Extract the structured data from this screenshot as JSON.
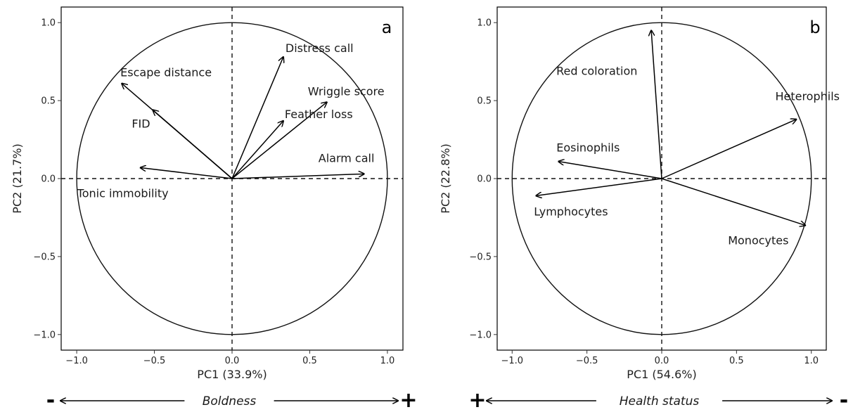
{
  "chart_data": [
    {
      "type": "scatter",
      "panel": "a",
      "xlabel": "PC1 (33.9%)",
      "ylabel": "PC2 (21.7%)",
      "xlim": [
        -1.1,
        1.1
      ],
      "ylim": [
        -1.1,
        1.1
      ],
      "xticks": [
        "−1.0",
        "−0.5",
        "0.0",
        "0.5",
        "1.0"
      ],
      "yticks": [
        "−1.0",
        "−0.5",
        "0.0",
        "0.5",
        "1.0"
      ],
      "vectors": [
        {
          "name": "Distress call",
          "x": 0.33,
          "y": 0.78
        },
        {
          "name": "Escape distance",
          "x": -0.71,
          "y": 0.61
        },
        {
          "name": "FID",
          "x": -0.51,
          "y": 0.44
        },
        {
          "name": "Wriggle score",
          "x": 0.61,
          "y": 0.49
        },
        {
          "name": "Feather loss",
          "x": 0.33,
          "y": 0.37
        },
        {
          "name": "Alarm call",
          "x": 0.85,
          "y": 0.03
        },
        {
          "name": "Tonic immobility",
          "x": -0.59,
          "y": 0.07
        }
      ],
      "bottom_axis": {
        "left_sign": "-",
        "label": "Boldness",
        "right_sign": "+"
      }
    },
    {
      "type": "scatter",
      "panel": "b",
      "xlabel": "PC1 (54.6%)",
      "ylabel": "PC2 (22.8%)",
      "xlim": [
        -1.1,
        1.1
      ],
      "ylim": [
        -1.1,
        1.1
      ],
      "xticks": [
        "−1.0",
        "−0.5",
        "0.0",
        "0.5",
        "1.0"
      ],
      "yticks": [
        "−1.0",
        "−0.5",
        "0.0",
        "0.5",
        "1.0"
      ],
      "vectors": [
        {
          "name": "Red coloration",
          "x": -0.07,
          "y": 0.95
        },
        {
          "name": "Heterophils",
          "x": 0.9,
          "y": 0.38
        },
        {
          "name": "Eosinophils",
          "x": -0.69,
          "y": 0.11
        },
        {
          "name": "Lymphocytes",
          "x": -0.84,
          "y": -0.11
        },
        {
          "name": "Monocytes",
          "x": 0.96,
          "y": -0.3
        }
      ],
      "bottom_axis": {
        "left_sign": "+",
        "label": "Health status",
        "right_sign": "-"
      }
    }
  ]
}
